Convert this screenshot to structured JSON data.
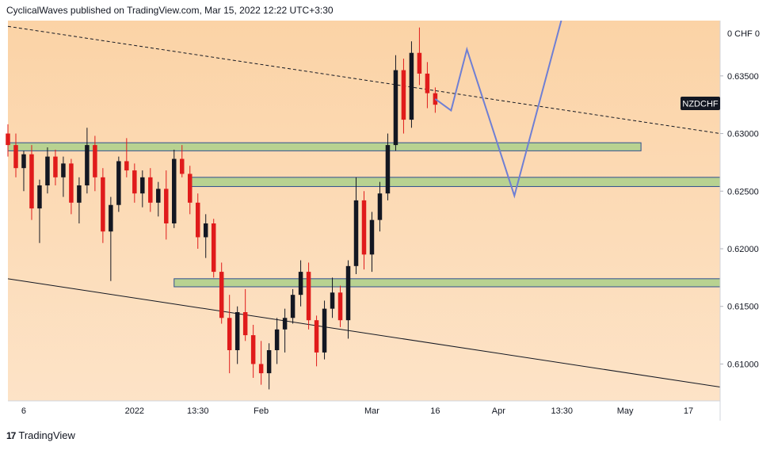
{
  "header": {
    "publish_line": "CyclicalWaves published on TradingView.com, Mar 15, 2022 12:22 UTC+3:30"
  },
  "footer": {
    "brand": "TradingView",
    "logo_glyph": "17"
  },
  "chart_data": {
    "type": "candlestick",
    "symbol": "NZDCHF",
    "currency_label": "0 CHF 0",
    "y_ticks": [
      "0.63500",
      "0.63000",
      "0.62500",
      "0.62000",
      "0.61500",
      "0.61000"
    ],
    "y_tick_values": [
      0.635,
      0.63,
      0.625,
      0.62,
      0.615,
      0.61
    ],
    "ylim": [
      0.6068,
      0.6398
    ],
    "x_ticks": [
      "6",
      "2022",
      "13:30",
      "Feb",
      "Mar",
      "16",
      "Apr",
      "13:30",
      "May",
      "17"
    ],
    "x_tick_index": [
      2,
      16,
      24,
      32,
      46,
      54,
      62,
      70,
      78,
      86
    ],
    "x_index_range": [
      0,
      90
    ],
    "last_index": 54,
    "last_close": 0.6325,
    "zones": [
      {
        "from_index": 0,
        "to_index": 80,
        "low": 0.6285,
        "high": 0.6292
      },
      {
        "from_index": 23,
        "to_index": 90,
        "low": 0.6254,
        "high": 0.6262
      },
      {
        "from_index": 21,
        "to_index": 90,
        "low": 0.6167,
        "high": 0.6174
      }
    ],
    "dashed_trendline": [
      [
        0,
        0.6393
      ],
      [
        90,
        0.63
      ]
    ],
    "lower_trendline": [
      [
        0,
        0.6174
      ],
      [
        90,
        0.608
      ]
    ],
    "projection_path": [
      [
        54,
        0.633
      ],
      [
        56,
        0.632
      ],
      [
        58,
        0.6373
      ],
      [
        64,
        0.6246
      ],
      [
        70,
        0.64
      ]
    ],
    "colors": {
      "bull": "#131722",
      "bear": "#e01b1b",
      "zone_fill": "#b8d291",
      "zone_border": "#2f4f8f",
      "projection": "#6f7fd4",
      "chart_bg_top": "#fbd3a6",
      "chart_bg_bottom": "#fde3c7",
      "symbol_badge_bg": "#131722",
      "symbol_badge_text": "#ffffff"
    },
    "grid": false,
    "candles": [
      [
        0.63,
        0.6308,
        0.628,
        0.629
      ],
      [
        0.629,
        0.63,
        0.6262,
        0.627
      ],
      [
        0.627,
        0.6285,
        0.625,
        0.6282
      ],
      [
        0.6282,
        0.629,
        0.6225,
        0.6235
      ],
      [
        0.6235,
        0.626,
        0.6205,
        0.6255
      ],
      [
        0.6255,
        0.6288,
        0.6248,
        0.628
      ],
      [
        0.628,
        0.6286,
        0.6255,
        0.6262
      ],
      [
        0.6262,
        0.628,
        0.6245,
        0.6274
      ],
      [
        0.6274,
        0.6278,
        0.623,
        0.624
      ],
      [
        0.624,
        0.6262,
        0.6222,
        0.6255
      ],
      [
        0.6255,
        0.6305,
        0.6248,
        0.629
      ],
      [
        0.629,
        0.6298,
        0.625,
        0.6262
      ],
      [
        0.6262,
        0.627,
        0.6205,
        0.6215
      ],
      [
        0.6215,
        0.6245,
        0.6172,
        0.6238
      ],
      [
        0.6238,
        0.628,
        0.6232,
        0.6276
      ],
      [
        0.6276,
        0.6296,
        0.6262,
        0.6268
      ],
      [
        0.6268,
        0.6274,
        0.624,
        0.6248
      ],
      [
        0.6248,
        0.6268,
        0.6236,
        0.6262
      ],
      [
        0.6262,
        0.627,
        0.6232,
        0.624
      ],
      [
        0.624,
        0.6258,
        0.6228,
        0.6252
      ],
      [
        0.6252,
        0.6268,
        0.6208,
        0.6222
      ],
      [
        0.6222,
        0.6286,
        0.6218,
        0.6278
      ],
      [
        0.6278,
        0.629,
        0.6262,
        0.6265
      ],
      [
        0.6265,
        0.6272,
        0.623,
        0.624
      ],
      [
        0.624,
        0.6248,
        0.62,
        0.621
      ],
      [
        0.621,
        0.623,
        0.6192,
        0.6222
      ],
      [
        0.6222,
        0.6226,
        0.6175,
        0.618
      ],
      [
        0.618,
        0.6188,
        0.6135,
        0.614
      ],
      [
        0.614,
        0.616,
        0.6092,
        0.6112
      ],
      [
        0.6112,
        0.615,
        0.61,
        0.6145
      ],
      [
        0.6145,
        0.6165,
        0.612,
        0.6125
      ],
      [
        0.6125,
        0.6134,
        0.6088,
        0.61
      ],
      [
        0.61,
        0.612,
        0.6082,
        0.6092
      ],
      [
        0.6092,
        0.6118,
        0.6078,
        0.6112
      ],
      [
        0.6112,
        0.614,
        0.61,
        0.613
      ],
      [
        0.613,
        0.6148,
        0.611,
        0.614
      ],
      [
        0.614,
        0.6165,
        0.6135,
        0.616
      ],
      [
        0.616,
        0.619,
        0.615,
        0.618
      ],
      [
        0.618,
        0.6188,
        0.613,
        0.6138
      ],
      [
        0.6138,
        0.6142,
        0.6098,
        0.611
      ],
      [
        0.611,
        0.6155,
        0.6104,
        0.6148
      ],
      [
        0.6148,
        0.6175,
        0.614,
        0.6162
      ],
      [
        0.6162,
        0.6168,
        0.6132,
        0.6138
      ],
      [
        0.6138,
        0.619,
        0.6122,
        0.6185
      ],
      [
        0.6185,
        0.6262,
        0.6178,
        0.6242
      ],
      [
        0.6242,
        0.625,
        0.6182,
        0.6195
      ],
      [
        0.6195,
        0.6232,
        0.618,
        0.6225
      ],
      [
        0.6225,
        0.6258,
        0.6215,
        0.6248
      ],
      [
        0.6248,
        0.63,
        0.6242,
        0.629
      ],
      [
        0.629,
        0.6368,
        0.6285,
        0.6355
      ],
      [
        0.6355,
        0.6365,
        0.63,
        0.6312
      ],
      [
        0.6312,
        0.638,
        0.6305,
        0.637
      ],
      [
        0.637,
        0.6392,
        0.6342,
        0.6352
      ],
      [
        0.6352,
        0.6362,
        0.6322,
        0.6335
      ],
      [
        0.6335,
        0.634,
        0.6318,
        0.6325
      ]
    ]
  }
}
